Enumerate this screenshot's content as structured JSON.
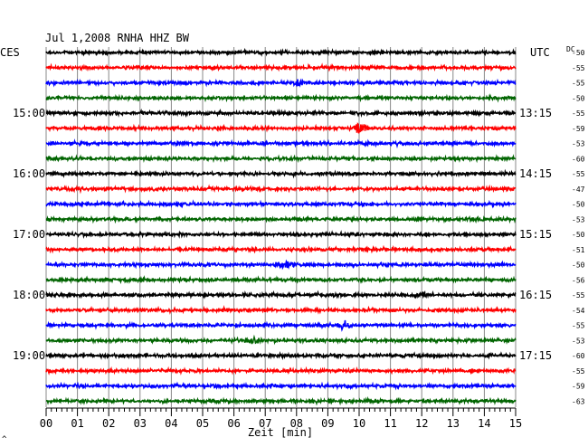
{
  "header": {
    "title": "Jul 1,2008   RNHA HHZ BW",
    "left_tz": "CES",
    "right_tz": "UTC",
    "dc_label": "DC"
  },
  "chart_data": {
    "type": "line",
    "title": "Jul 1,2008   RNHA HHZ BW",
    "xlabel": "Zeit [min]",
    "x_ticks": [
      "00",
      "01",
      "02",
      "03",
      "04",
      "05",
      "06",
      "07",
      "08",
      "09",
      "10",
      "11",
      "12",
      "13",
      "14",
      "15"
    ],
    "xlim": [
      0,
      15
    ],
    "grid": true,
    "trace_colors": [
      "#000000",
      "#ff0000",
      "#0000ff",
      "#006400"
    ],
    "left_hour_labels": [
      {
        "row": 4,
        "text": "15:00"
      },
      {
        "row": 8,
        "text": "16:00"
      },
      {
        "row": 12,
        "text": "17:00"
      },
      {
        "row": 16,
        "text": "18:00"
      },
      {
        "row": 20,
        "text": "19:00"
      }
    ],
    "right_hour_labels": [
      {
        "row": 4,
        "text": "13:15"
      },
      {
        "row": 8,
        "text": "14:15"
      },
      {
        "row": 12,
        "text": "15:15"
      },
      {
        "row": 16,
        "text": "16:15"
      },
      {
        "row": 20,
        "text": "17:15"
      }
    ],
    "dc_offsets": [
      "-50",
      "-55",
      "-55",
      "-50",
      "-55",
      "-59",
      "-53",
      "-60",
      "-55",
      "-47",
      "-50",
      "-53",
      "-50",
      "-51",
      "-50",
      "-56",
      "-55",
      "-54",
      "-55",
      "-53",
      "-60",
      "-55",
      "-59",
      "-63"
    ],
    "events": [
      {
        "row": 2,
        "minute": 8.1,
        "amp": 1.5
      },
      {
        "row": 5,
        "minute": 10.0,
        "amp": 3.0
      },
      {
        "row": 14,
        "minute": 7.6,
        "amp": 1.6
      },
      {
        "row": 16,
        "minute": 12.1,
        "amp": 1.5
      },
      {
        "row": 18,
        "minute": 9.5,
        "amp": 2.2
      },
      {
        "row": 19,
        "minute": 6.6,
        "amp": 2.0
      },
      {
        "row": 22,
        "minute": 5.5,
        "amp": 1.3
      }
    ]
  },
  "footnote": "^"
}
